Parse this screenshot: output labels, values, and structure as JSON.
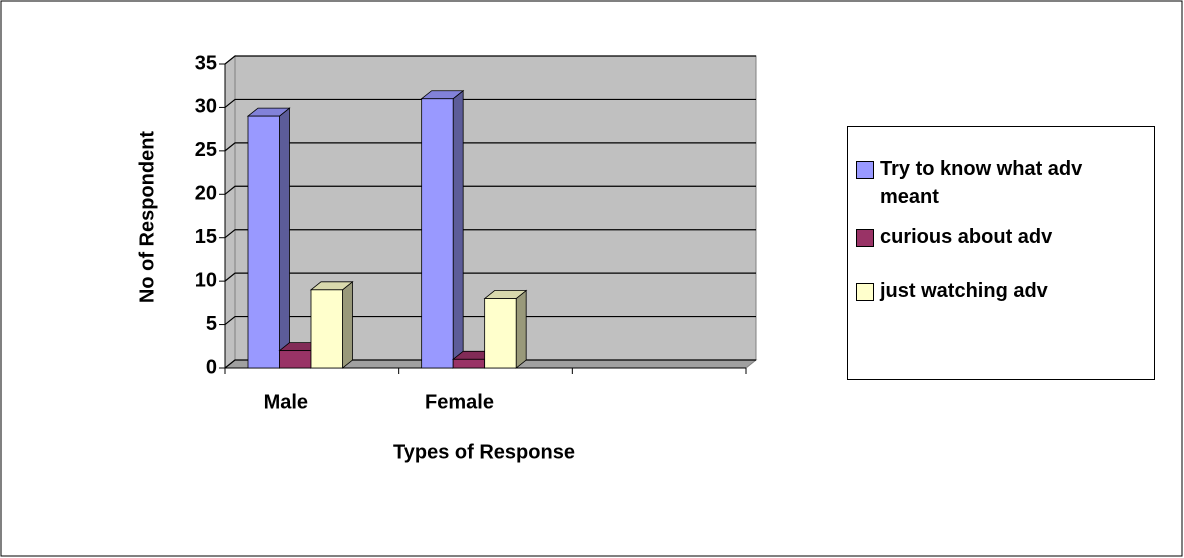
{
  "chart_data": {
    "type": "bar3d",
    "x_label": "Types of Response",
    "y_label": "No of Respondent",
    "categories": [
      "Male",
      "Female",
      null
    ],
    "series": [
      {
        "name": "Try to know what adv meant",
        "color": "#9999ff",
        "values": [
          29,
          31,
          null
        ]
      },
      {
        "name": "curious about adv",
        "color": "#993366",
        "values": [
          2,
          1,
          null
        ]
      },
      {
        "name": "just watching adv",
        "color": "#ffffcc",
        "values": [
          9,
          8,
          null
        ]
      }
    ],
    "ylim": [
      0,
      35
    ],
    "yticks": [
      0,
      5,
      10,
      15,
      20,
      25,
      30,
      35
    ],
    "grid": true,
    "legend": "right"
  }
}
